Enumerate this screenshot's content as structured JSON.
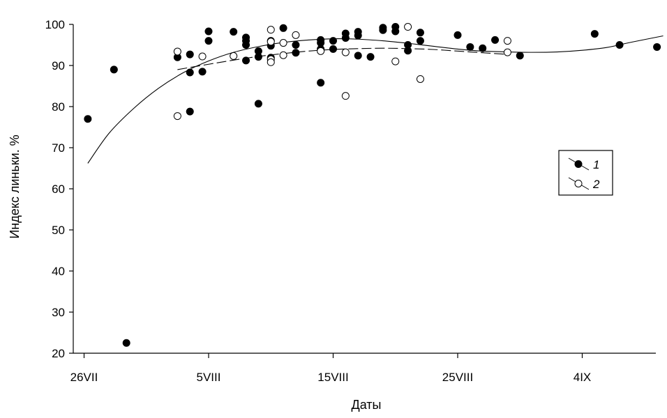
{
  "chart_data": {
    "type": "scatter",
    "title": "",
    "xlabel": "Даты",
    "ylabel": "Индекс линьки. %",
    "xlim": [
      26,
      72.5
    ],
    "ylim": [
      20,
      100
    ],
    "x_unit": "day counted from 1 July (26 = 26 July, 36 = 5 Aug, 46 = 15 Aug, 56 = 25 Aug, 66 = 4 Sept)",
    "x_ticks": [
      {
        "value": 26,
        "label": "26VII"
      },
      {
        "value": 36,
        "label": "5VIII"
      },
      {
        "value": 46,
        "label": "15VIII"
      },
      {
        "value": 56,
        "label": "25VIII"
      },
      {
        "value": 66,
        "label": "4IX"
      }
    ],
    "y_ticks": [
      {
        "value": 20,
        "label": "20"
      },
      {
        "value": 30,
        "label": "30"
      },
      {
        "value": 40,
        "label": "40"
      },
      {
        "value": 50,
        "label": "50"
      },
      {
        "value": 60,
        "label": "60"
      },
      {
        "value": 70,
        "label": "70"
      },
      {
        "value": 80,
        "label": "80"
      },
      {
        "value": 90,
        "label": "90"
      },
      {
        "value": 100,
        "label": "100"
      }
    ],
    "series": [
      {
        "name": "1",
        "marker": "filled-circle",
        "trend_style": "solid",
        "trend_x_range": [
          26.3,
          72.5
        ],
        "trend_points": [
          [
            26.3,
            66.2
          ],
          [
            28,
            73.5
          ],
          [
            30,
            79.6
          ],
          [
            32,
            84.5
          ],
          [
            34,
            88.3
          ],
          [
            36,
            91.1
          ],
          [
            38,
            93.2
          ],
          [
            40,
            94.6
          ],
          [
            42,
            95.6
          ],
          [
            44,
            96.2
          ],
          [
            46,
            96.5
          ],
          [
            48,
            96.4
          ],
          [
            50,
            96
          ],
          [
            52,
            95.4
          ],
          [
            54,
            94.7
          ],
          [
            56,
            94.0
          ],
          [
            58,
            93.5
          ],
          [
            60,
            93.3
          ],
          [
            62,
            93.2
          ],
          [
            64,
            93.3
          ],
          [
            66,
            93.7
          ],
          [
            68,
            94.4
          ],
          [
            70,
            95.7
          ],
          [
            72.5,
            97.2
          ]
        ],
        "points": [
          [
            26.3,
            77
          ],
          [
            28.4,
            89
          ],
          [
            29.4,
            22.5
          ],
          [
            33.5,
            92
          ],
          [
            34.5,
            92.7
          ],
          [
            34.5,
            88.3
          ],
          [
            34.5,
            78.8
          ],
          [
            35.5,
            88.5
          ],
          [
            36,
            98.3
          ],
          [
            36,
            96
          ],
          [
            38,
            98.2
          ],
          [
            39,
            96.8
          ],
          [
            39,
            96
          ],
          [
            39,
            95
          ],
          [
            39,
            91.2
          ],
          [
            40,
            93.5
          ],
          [
            40,
            92.1
          ],
          [
            40,
            80.7
          ],
          [
            41,
            96
          ],
          [
            41,
            94.8
          ],
          [
            41,
            91.9
          ],
          [
            42,
            99.1
          ],
          [
            43,
            95
          ],
          [
            43,
            93.1
          ],
          [
            45,
            96.2
          ],
          [
            45,
            95.5
          ],
          [
            45,
            94
          ],
          [
            45,
            85.8
          ],
          [
            46,
            96
          ],
          [
            46,
            94
          ],
          [
            47,
            97.8
          ],
          [
            47,
            96.7
          ],
          [
            48,
            98.2
          ],
          [
            48,
            97.3
          ],
          [
            48,
            92.4
          ],
          [
            49,
            92.1
          ],
          [
            50,
            99.2
          ],
          [
            50,
            98.6
          ],
          [
            51,
            99.4
          ],
          [
            51,
            98.3
          ],
          [
            52,
            95
          ],
          [
            52,
            93.6
          ],
          [
            53,
            98
          ],
          [
            53,
            96
          ],
          [
            56,
            97.4
          ],
          [
            57,
            94.5
          ],
          [
            58,
            94.2
          ],
          [
            59,
            96.2
          ],
          [
            61,
            92.4
          ],
          [
            67,
            97.7
          ],
          [
            69,
            95
          ],
          [
            72,
            94.5
          ]
        ]
      },
      {
        "name": "2",
        "marker": "open-circle",
        "trend_style": "dashed",
        "trend_x_range": [
          33.5,
          60
        ],
        "trend_points": [
          [
            33.5,
            89.0
          ],
          [
            36,
            90.3
          ],
          [
            38,
            91.3
          ],
          [
            40,
            92.2
          ],
          [
            42,
            92.9
          ],
          [
            44,
            93.5
          ],
          [
            46,
            93.9
          ],
          [
            48,
            94.1
          ],
          [
            50,
            94.2
          ],
          [
            52,
            94.1
          ],
          [
            54,
            93.9
          ],
          [
            56,
            93.5
          ],
          [
            58,
            93.1
          ],
          [
            60,
            92.7
          ]
        ],
        "points": [
          [
            33.5,
            93.4
          ],
          [
            33.5,
            77.7
          ],
          [
            35.5,
            92.2
          ],
          [
            38,
            92.3
          ],
          [
            41,
            98.7
          ],
          [
            41,
            95.8
          ],
          [
            41,
            91.5
          ],
          [
            41,
            90.8
          ],
          [
            42,
            95.5
          ],
          [
            42,
            92.5
          ],
          [
            43,
            97.4
          ],
          [
            45,
            93.5
          ],
          [
            47,
            93.2
          ],
          [
            47,
            82.6
          ],
          [
            51,
            91
          ],
          [
            52,
            99.4
          ],
          [
            53,
            86.7
          ],
          [
            60,
            96
          ],
          [
            60,
            93.2
          ]
        ]
      }
    ],
    "legend": {
      "position": "right",
      "entries": [
        {
          "label": "1",
          "marker": "filled-circle"
        },
        {
          "label": "2",
          "marker": "open-circle"
        }
      ]
    },
    "grid": false
  }
}
